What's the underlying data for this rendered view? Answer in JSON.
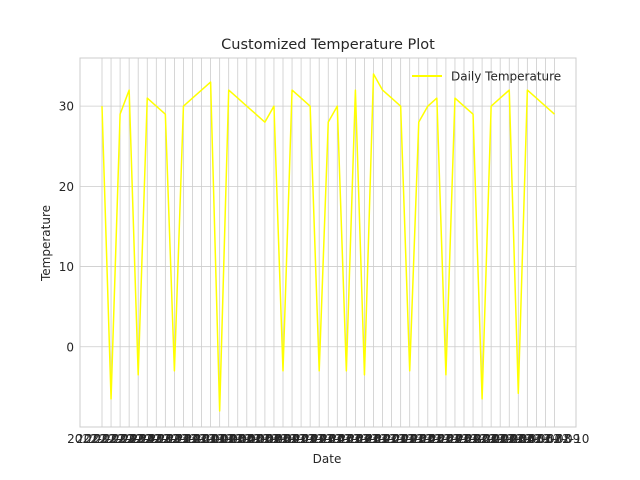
{
  "chart_data": {
    "type": "line",
    "title": "Customized Temperature Plot",
    "xlabel": "Date",
    "ylabel": "Temperature",
    "grid": true,
    "legend_position": "top-right",
    "ylim": [
      -10,
      36
    ],
    "yticks": [
      0,
      10,
      20,
      30
    ],
    "x": [
      "2022-12-22",
      "2022-12-23",
      "2022-12-24",
      "2022-12-25",
      "2022-12-26",
      "2022-12-27",
      "2022-12-28",
      "2022-12-29",
      "2022-12-30",
      "2022-12-31",
      "2023-01-01",
      "2023-01-02",
      "2023-01-03",
      "2023-01-04",
      "2023-01-05",
      "2023-01-06",
      "2023-01-07",
      "2023-01-08",
      "2023-01-09",
      "2023-01-10",
      "2023-01-11",
      "2023-01-12",
      "2023-01-13",
      "2023-01-14",
      "2023-01-15",
      "2023-01-16",
      "2023-01-17",
      "2023-01-18",
      "2023-01-19",
      "2023-01-20",
      "2023-01-21",
      "2023-01-22",
      "2023-01-23",
      "2023-01-24",
      "2023-01-25",
      "2023-01-26",
      "2023-01-27",
      "2023-01-28",
      "2023-01-29",
      "2023-01-30",
      "2023-01-31",
      "2023-02-01",
      "2023-02-02",
      "2023-02-03",
      "2023-02-04",
      "2023-02-05",
      "2023-02-06",
      "2023-02-07",
      "2023-02-08",
      "2023-02-09",
      "2023-02-10"
    ],
    "series": [
      {
        "name": "Daily Temperature",
        "color": "#ffff00",
        "values": [
          30,
          -6.5,
          29,
          32,
          -3.5,
          31,
          30,
          29,
          -3,
          30,
          31,
          32,
          33,
          -8,
          32,
          31,
          30,
          29,
          28,
          30,
          -3,
          32,
          31,
          30,
          -3,
          28,
          30,
          -3,
          32,
          -3.5,
          34,
          32,
          31,
          30,
          -3,
          28,
          30,
          31,
          -3.5,
          31,
          30,
          29,
          -6.5,
          30,
          31,
          32,
          -5.8,
          32,
          31,
          30,
          29
        ]
      }
    ]
  }
}
